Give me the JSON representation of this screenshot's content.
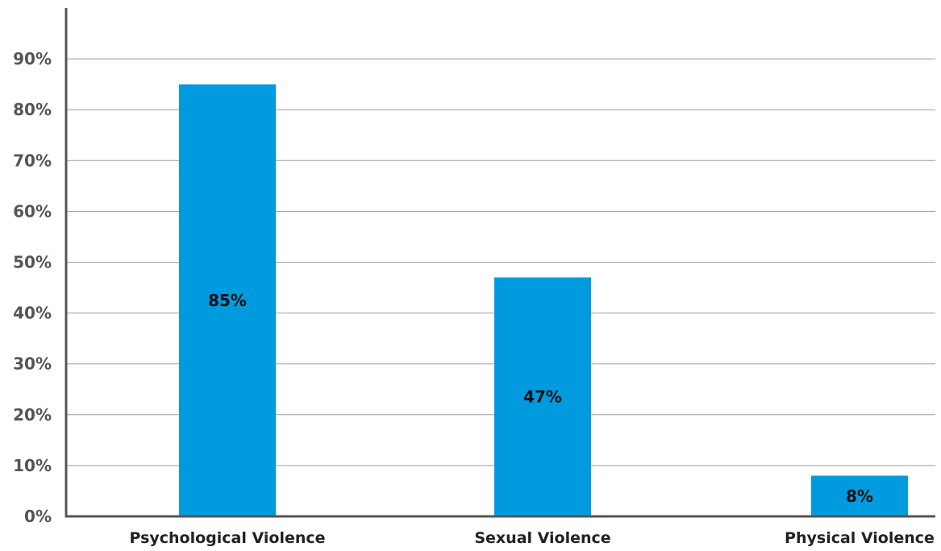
{
  "chart_data": {
    "type": "bar",
    "categories": [
      "Psychological Violence",
      "Sexual Violence",
      "Physical Violence"
    ],
    "values": [
      85,
      47,
      8
    ],
    "data_labels": [
      "85%",
      "47%",
      "8%"
    ],
    "title": "",
    "xlabel": "",
    "ylabel": "",
    "ylim": [
      0,
      100
    ],
    "yticks": [
      0,
      10,
      20,
      30,
      40,
      50,
      60,
      70,
      80,
      90
    ],
    "ytick_labels": [
      "0%",
      "10%",
      "20%",
      "30%",
      "40%",
      "50%",
      "60%",
      "70%",
      "80%",
      "90%"
    ],
    "grid": true,
    "legend": "none",
    "colors": {
      "bar": "#009ADE",
      "grid": "#9E9E9E",
      "axis": "#555555"
    }
  }
}
